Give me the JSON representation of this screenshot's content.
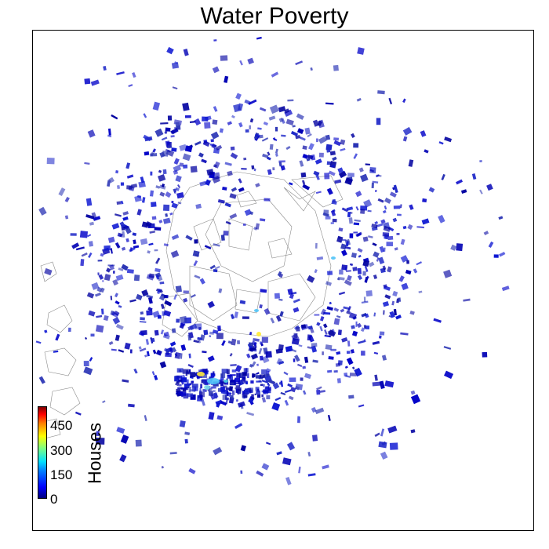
{
  "title": "Water Poverty",
  "colorbar": {
    "label": "Houses",
    "ticks": [
      "0",
      "150",
      "300",
      "450"
    ],
    "range": [
      0,
      500
    ],
    "colormap": "jet"
  },
  "colors": {
    "dominant_fill": "#0000c8",
    "outline": "#808080",
    "highlight_light": "#4fc3f7",
    "highlight_yellow": "#ffeb3b"
  },
  "map": {
    "type": "choropleth",
    "description_visible": false
  }
}
